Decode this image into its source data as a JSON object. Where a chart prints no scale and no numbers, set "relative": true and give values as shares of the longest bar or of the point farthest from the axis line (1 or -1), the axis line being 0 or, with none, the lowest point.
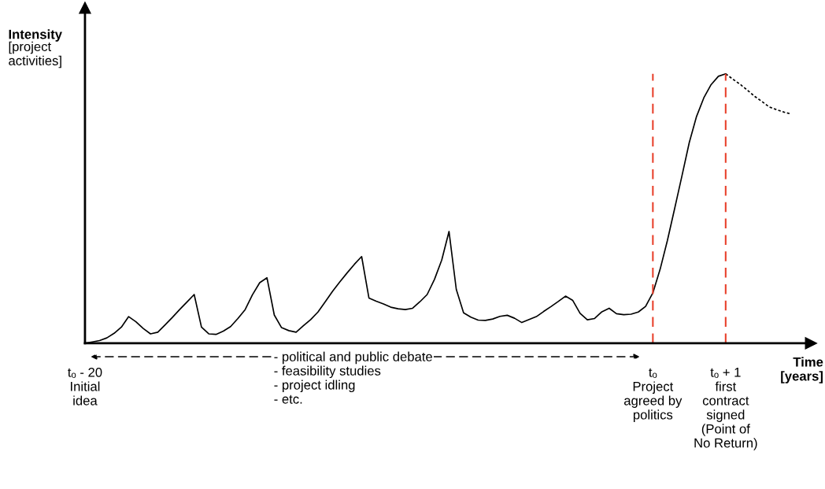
{
  "chart_data": {
    "type": "line",
    "relative": true,
    "ylabel": "Intensity\n[project\nactivities]",
    "xlabel": "Time\n[years]",
    "categories": [
      "tₒ - 20\nInitial\nidea",
      null,
      null,
      null,
      null,
      null,
      null,
      null,
      null,
      null,
      null,
      null,
      null,
      null,
      null,
      null,
      null,
      null,
      null,
      null,
      null,
      null,
      null,
      null,
      null,
      null,
      null,
      null,
      null,
      null,
      null,
      null,
      null,
      null,
      null,
      null,
      null,
      null,
      null,
      null,
      null,
      null,
      null,
      null,
      null,
      null,
      null,
      null,
      null,
      null,
      null,
      null,
      null,
      null,
      null,
      null,
      null,
      null,
      null,
      null,
      null,
      null,
      null,
      null,
      null,
      null,
      null,
      null,
      null,
      null,
      null,
      null,
      null,
      null,
      null,
      null,
      null,
      null,
      "tₒ\nProject\nagreed by\npolitics",
      null,
      null,
      null,
      null,
      null,
      null,
      null,
      null,
      null,
      "tₒ + 1\nfirst\ncontract\nsigned\n(Point of\nNo Return)",
      null,
      null,
      null,
      null,
      null,
      null,
      null,
      null,
      null
    ],
    "series": [
      {
        "color": "#000000",
        "line_style": "solid",
        "values": [
          0,
          0.005,
          0.01,
          0.02,
          0.037,
          0.06,
          0.099,
          0.08,
          0.055,
          0.035,
          0.041,
          0.068,
          0.096,
          0.125,
          0.153,
          0.181,
          0.06,
          0.035,
          0.033,
          0.045,
          0.062,
          0.092,
          0.125,
          0.18,
          0.225,
          0.243,
          0.105,
          0.058,
          0.047,
          0.041,
          0.065,
          0.088,
          0.116,
          0.154,
          0.193,
          0.228,
          0.261,
          0.293,
          0.322,
          0.168,
          0.156,
          0.146,
          0.134,
          0.128,
          0.125,
          0.13,
          0.154,
          0.181,
          0.237,
          0.309,
          0.415,
          0.2,
          0.113,
          0.097,
          0.086,
          0.085,
          0.09,
          0.1,
          0.104,
          0.093,
          0.077,
          0.088,
          0.099,
          0.118,
          0.136,
          0.155,
          0.175,
          0.159,
          0.111,
          0.087,
          0.092,
          0.117,
          0.13,
          0.11,
          0.106,
          0.108,
          0.116,
          0.137,
          0.187,
          0.275,
          0.382,
          0.501,
          0.622,
          0.745,
          0.842,
          0.911,
          0.96,
          0.991,
          1,
          null,
          null,
          null,
          null,
          null,
          null,
          null,
          null,
          null
        ]
      },
      {
        "color": "#000000",
        "line_style": "dotted",
        "values": [
          null,
          null,
          null,
          null,
          null,
          null,
          null,
          null,
          null,
          null,
          null,
          null,
          null,
          null,
          null,
          null,
          null,
          null,
          null,
          null,
          null,
          null,
          null,
          null,
          null,
          null,
          null,
          null,
          null,
          null,
          null,
          null,
          null,
          null,
          null,
          null,
          null,
          null,
          null,
          null,
          null,
          null,
          null,
          null,
          null,
          null,
          null,
          null,
          null,
          null,
          null,
          null,
          null,
          null,
          null,
          null,
          null,
          null,
          null,
          null,
          null,
          null,
          null,
          null,
          null,
          null,
          null,
          null,
          null,
          null,
          null,
          null,
          null,
          null,
          null,
          null,
          null,
          null,
          null,
          null,
          null,
          null,
          null,
          null,
          null,
          null,
          null,
          null,
          1,
          0.98,
          0.961,
          0.939,
          0.916,
          0.897,
          0.877,
          0.867,
          0.858,
          0.851
        ]
      }
    ],
    "ref_lines": [
      {
        "axis": "x",
        "value": "tₒ\nProject\nagreed by\npolitics",
        "color": "#e8412c",
        "line_style": "dashed"
      },
      {
        "axis": "x",
        "value": "tₒ + 1\nfirst\ncontract\nsigned\n(Point of\nNo Return)",
        "color": "#e8412c",
        "line_style": "dashed"
      }
    ],
    "annotations": [
      "- political and public debate\n- feasibility studies\n- project idling\n- etc."
    ],
    "grid": false,
    "legend": false
  }
}
